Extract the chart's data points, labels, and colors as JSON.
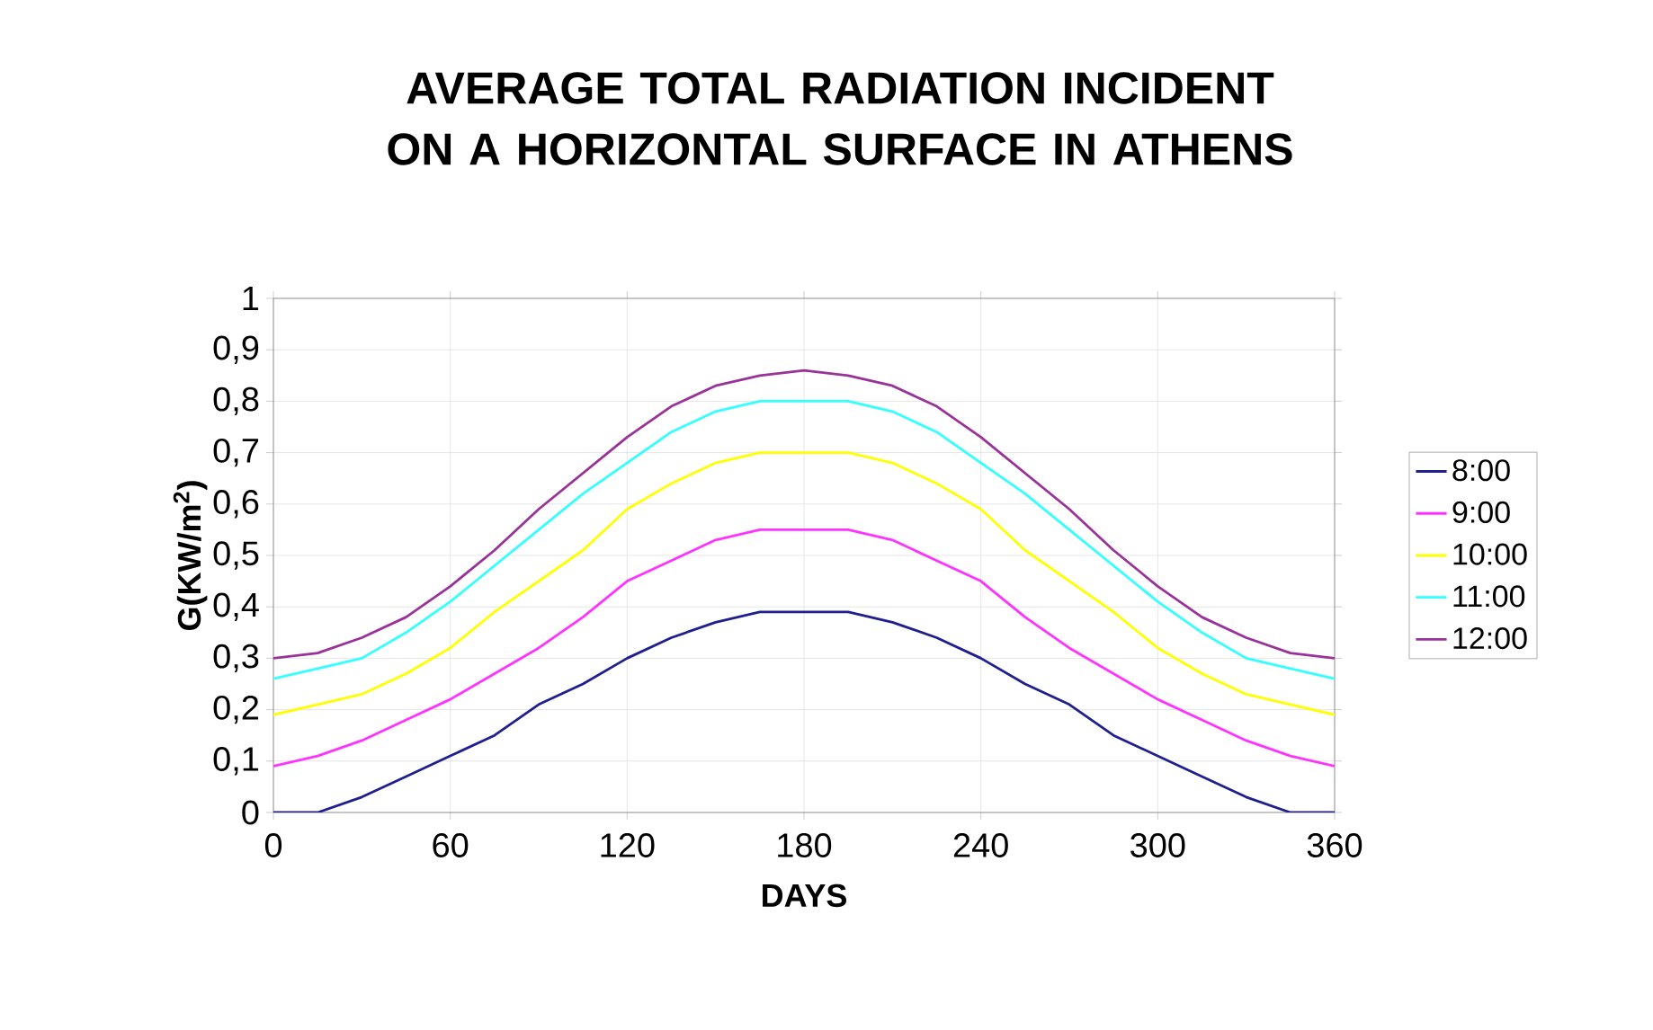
{
  "chart_data": {
    "type": "line",
    "title": "AVERAGE TOTAL RADIATION INCIDENT ON A HORIZONTAL SURFACE IN ATHENS",
    "xlabel": "DAYS",
    "ylabel": "G(KW/m$^{2}$)",
    "x": [
      0,
      15,
      30,
      45,
      60,
      75,
      90,
      105,
      120,
      135,
      150,
      165,
      180,
      195,
      210,
      225,
      240,
      255,
      270,
      285,
      300,
      315,
      330,
      345,
      360
    ],
    "series": [
      {
        "name": "8:00",
        "color": "#1f1f8f",
        "values": [
          0,
          0,
          0.03,
          0.07,
          0.11,
          0.15,
          0.21,
          0.25,
          0.3,
          0.34,
          0.37,
          0.39,
          0.39,
          0.39,
          0.37,
          0.34,
          0.3,
          0.25,
          0.21,
          0.15,
          0.11,
          0.07,
          0.03,
          0,
          0
        ]
      },
      {
        "name": "9:00",
        "color": "#ff33ff",
        "values": [
          0.09,
          0.11,
          0.14,
          0.18,
          0.22,
          0.27,
          0.32,
          0.38,
          0.45,
          0.49,
          0.53,
          0.55,
          0.55,
          0.55,
          0.53,
          0.49,
          0.45,
          0.38,
          0.32,
          0.27,
          0.22,
          0.18,
          0.14,
          0.11,
          0.09
        ]
      },
      {
        "name": "10:00",
        "color": "#ffff00",
        "values": [
          0.19,
          0.21,
          0.23,
          0.27,
          0.32,
          0.39,
          0.45,
          0.51,
          0.59,
          0.64,
          0.68,
          0.7,
          0.7,
          0.7,
          0.68,
          0.64,
          0.59,
          0.51,
          0.45,
          0.39,
          0.32,
          0.27,
          0.23,
          0.21,
          0.19
        ]
      },
      {
        "name": "11:00",
        "color": "#33ffff",
        "values": [
          0.26,
          0.28,
          0.3,
          0.35,
          0.41,
          0.48,
          0.55,
          0.62,
          0.68,
          0.74,
          0.78,
          0.8,
          0.8,
          0.8,
          0.78,
          0.74,
          0.68,
          0.62,
          0.55,
          0.48,
          0.41,
          0.35,
          0.3,
          0.28,
          0.26
        ]
      },
      {
        "name": "12:00",
        "color": "#993399",
        "values": [
          0.3,
          0.31,
          0.34,
          0.38,
          0.44,
          0.51,
          0.59,
          0.66,
          0.73,
          0.79,
          0.83,
          0.85,
          0.86,
          0.85,
          0.83,
          0.79,
          0.73,
          0.66,
          0.59,
          0.51,
          0.44,
          0.38,
          0.34,
          0.31,
          0.3
        ]
      }
    ],
    "xlim": [
      0,
      360
    ],
    "xticks": [
      0,
      60,
      120,
      180,
      240,
      300,
      360
    ],
    "ylim": [
      0,
      1
    ],
    "yticks": [
      0,
      {
        "value": 0.1,
        "label": "0,1"
      },
      {
        "value": 0.2,
        "label": "0,2"
      },
      {
        "value": 0.3,
        "label": "0,3"
      },
      {
        "value": 0.4,
        "label": "0,4"
      },
      {
        "value": 0.5,
        "label": "0,5"
      },
      {
        "value": 0.6,
        "label": "0,6"
      },
      {
        "value": 0.7,
        "label": "0,7"
      },
      {
        "value": 0.8,
        "label": "0,8"
      },
      {
        "value": 0.9,
        "label": "0,9"
      },
      1
    ],
    "grid": true,
    "legend": "right",
    "marker": "none",
    "line_style": "solid"
  }
}
